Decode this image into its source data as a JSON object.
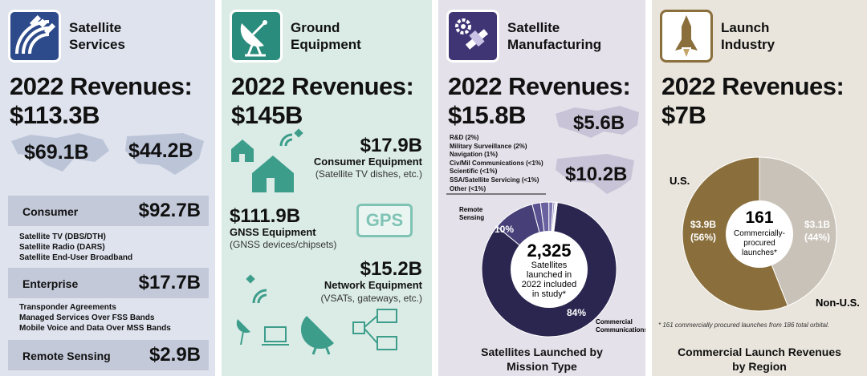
{
  "panels": {
    "services": {
      "title_line1": "Satellite",
      "title_line2": "Services",
      "rev_line1": "2022 Revenues:",
      "rev_line2": "$113.3B",
      "world_value": "$69.1B",
      "us_value": "$44.2B",
      "segments": [
        {
          "label": "Consumer",
          "value": "$92.7B",
          "items": [
            "Satellite TV (DBS/DTH)",
            "Satellite Radio (DARS)",
            "Satellite End-User Broadband"
          ]
        },
        {
          "label": "Enterprise",
          "value": "$17.7B",
          "items": [
            "Transponder Agreements",
            "Managed Services Over FSS Bands",
            "Mobile Voice and Data Over MSS Bands"
          ]
        },
        {
          "label": "Remote Sensing",
          "value": "$2.9B",
          "items": []
        }
      ]
    },
    "ground": {
      "title_line1": "Ground",
      "title_line2": "Equipment",
      "rev_line1": "2022 Revenues:",
      "rev_line2": "$145B",
      "consumer_value": "$17.9B",
      "consumer_label": "Consumer Equipment",
      "consumer_note": "(Satellite TV dishes, etc.)",
      "gnss_value": "$111.9B",
      "gnss_label": "GNSS Equipment",
      "gnss_note": "(GNSS devices/chipsets)",
      "gps_text": "GPS",
      "network_value": "$15.2B",
      "network_label": "Network Equipment",
      "network_note": "(VSATs, gateways, etc.)"
    },
    "manufacturing": {
      "title_line1": "Satellite",
      "title_line2": "Manufacturing",
      "rev_line1": "2022 Revenues:",
      "rev_line2": "$15.8B",
      "world_value": "$5.6B",
      "us_value": "$10.2B",
      "caption_line1": "Satellites Launched by",
      "caption_line2": "Mission Type",
      "center_number": "2,325",
      "center_lines": [
        "Satellites",
        "launched in",
        "2022 included",
        "in study*"
      ]
    },
    "launch": {
      "title_line1": "Launch",
      "title_line2": "Industry",
      "rev_line1": "2022 Revenues:",
      "rev_line2": "$7B",
      "center_number": "161",
      "center_lines": [
        "Commercially-",
        "procured",
        "launches*"
      ],
      "footnote": "* 161 commercially procured launches from 186 total orbital.",
      "caption_line1": "Commercial Launch Revenues",
      "caption_line2": "by Region"
    }
  },
  "chart_data": [
    {
      "type": "pie",
      "title": "Satellites Launched by Mission Type",
      "total_label": "2,325",
      "slices": [
        {
          "label": "Commercial Communications",
          "value": 84,
          "display": "84%",
          "color": "#2b2650"
        },
        {
          "label": "Remote Sensing",
          "value": 10,
          "display": "10%",
          "color": "#463f78"
        },
        {
          "label": "R&D (2%)",
          "value": 2,
          "color": "#5a5290"
        },
        {
          "label": "Military Surveillance (2%)",
          "value": 2,
          "color": "#6a62a0"
        },
        {
          "label": "Navigation (1%)",
          "value": 1,
          "color": "#7d76b0"
        },
        {
          "label": "Civ/Mil Communications (<1%)",
          "value": 0.4,
          "color": "#8e88bd"
        },
        {
          "label": "Scientific (<1%)",
          "value": 0.3,
          "color": "#a09bc9"
        },
        {
          "label": "SSA/Satellite Servicing (<1%)",
          "value": 0.2,
          "color": "#b3afd5"
        },
        {
          "label": "Other (<1%)",
          "value": 0.1,
          "color": "#c6c3e1"
        }
      ]
    },
    {
      "type": "pie",
      "title": "Commercial Launch Revenues by Region",
      "total_label": "161",
      "slices": [
        {
          "label": "U.S.",
          "value": 56,
          "amount": "$3.9B",
          "pct": "(56%)",
          "color": "#8a6f3c"
        },
        {
          "label": "Non-U.S.",
          "value": 44,
          "amount": "$3.1B",
          "pct": "(44%)",
          "color": "#c9c2b8"
        }
      ]
    }
  ]
}
